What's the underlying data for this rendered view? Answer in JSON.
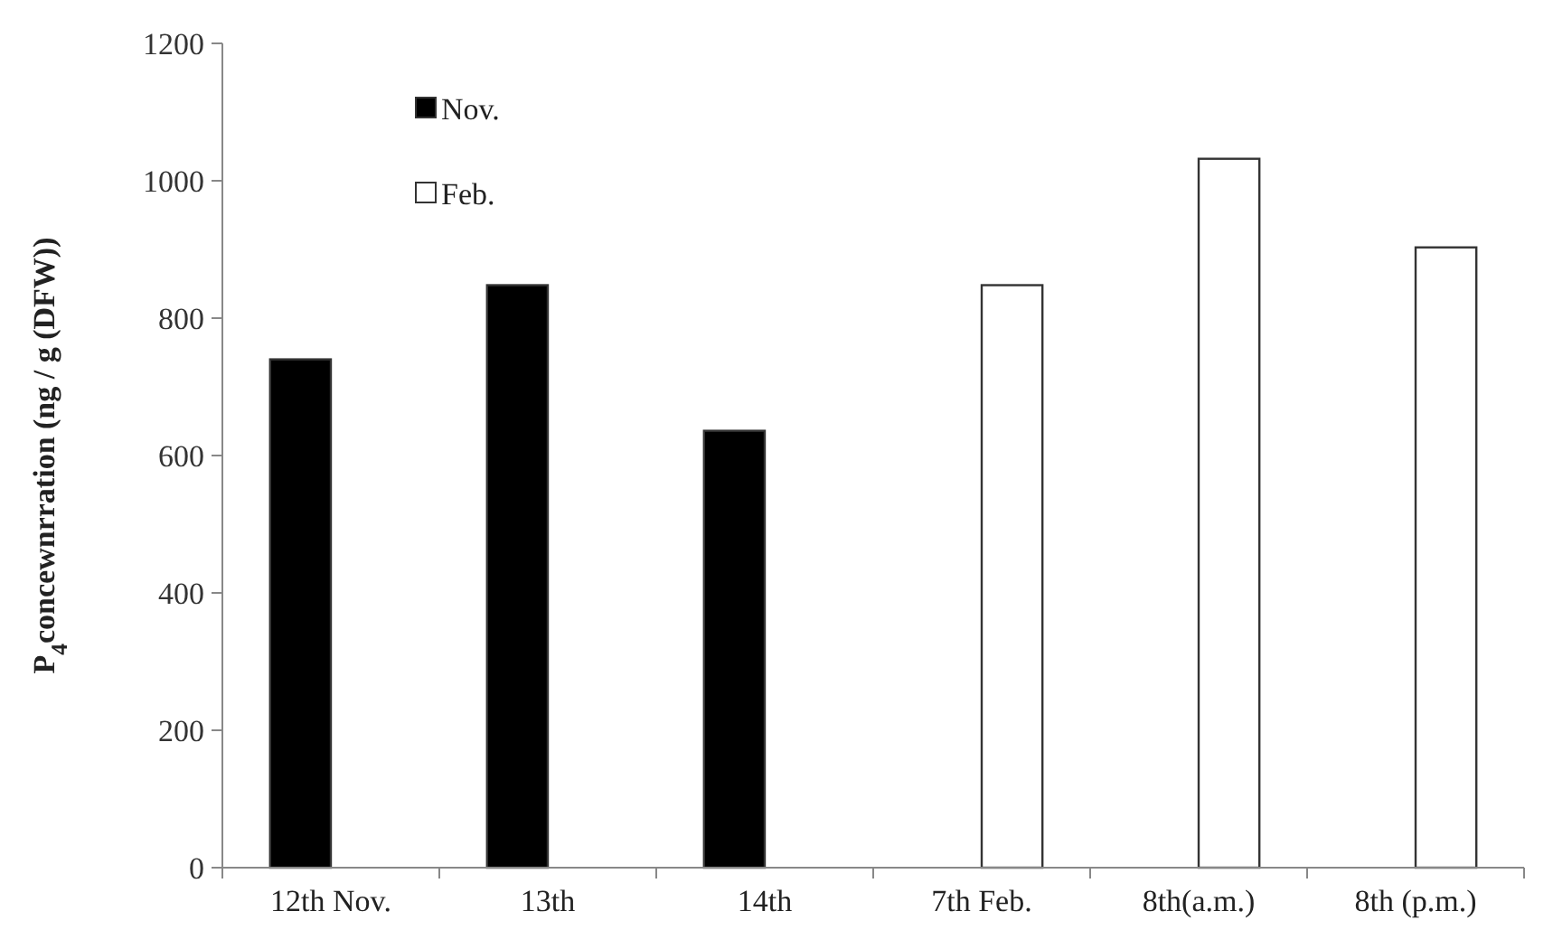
{
  "chart_data": {
    "type": "bar",
    "ylabel": "P$_{4}$concewnrration (ng / g (DFW))",
    "categories": [
      "12th Nov.",
      "13th",
      "14th",
      "7th Feb.",
      "8th(a.m.)",
      "8th (p.m.)"
    ],
    "series": [
      {
        "name": "Nov.",
        "color": "#000000",
        "values": [
          740,
          848,
          636,
          null,
          null,
          null
        ]
      },
      {
        "name": "Feb.",
        "color": "#ffffff",
        "values": [
          null,
          null,
          null,
          848,
          1032,
          903
        ]
      }
    ],
    "ylim": [
      0,
      1200
    ],
    "yticks": [
      0,
      200,
      400,
      600,
      800,
      1000,
      1200
    ],
    "grid": false,
    "legend": "top left"
  }
}
